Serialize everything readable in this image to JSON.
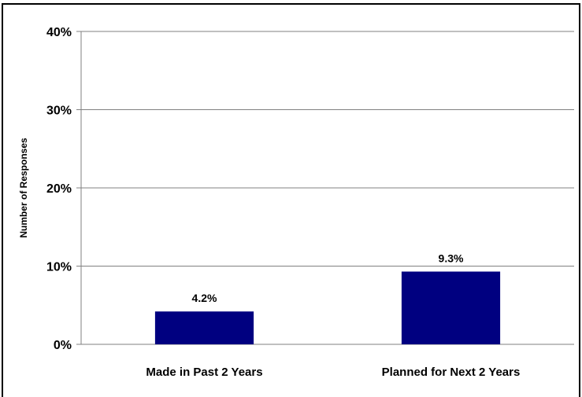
{
  "chart_data": {
    "type": "bar",
    "categories": [
      "Made in Past 2 Years",
      "Planned for Next 2 Years"
    ],
    "values": [
      4.2,
      9.3
    ],
    "data_labels": [
      "4.2%",
      "9.3%"
    ],
    "title": "",
    "xlabel": "",
    "ylabel": "Number of Responses",
    "ylim": [
      0,
      40
    ],
    "yticks": [
      0,
      10,
      20,
      30,
      40
    ],
    "ytick_labels": [
      "0%",
      "10%",
      "20%",
      "30%",
      "40%"
    ],
    "grid": true,
    "legend": "none",
    "bar_color": "#000080"
  }
}
